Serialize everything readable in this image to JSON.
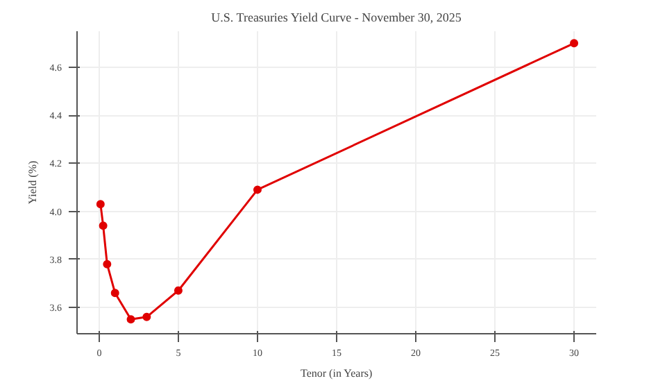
{
  "chart_data": {
    "type": "line",
    "title": "U.S. Treasuries Yield Curve - November 30, 2025",
    "xlabel": "Tenor (in Years)",
    "ylabel": "Yield (%)",
    "x": [
      0.083,
      0.25,
      0.5,
      1,
      2,
      3,
      5,
      10,
      30
    ],
    "series": [
      {
        "color": "#e00000",
        "values": [
          4.03,
          3.94,
          3.78,
          3.66,
          3.55,
          3.56,
          3.67,
          4.09,
          4.7
        ]
      }
    ],
    "xlim": [
      -1.4,
      31.4
    ],
    "ylim": [
      3.49,
      4.75
    ],
    "xticks": [
      0,
      5,
      10,
      15,
      20,
      25,
      30
    ],
    "yticks": [
      {
        "value": 3.6,
        "label": "3.6"
      },
      {
        "value": 3.8,
        "label": "3.8"
      },
      {
        "value": 4.0,
        "label": "4.0"
      },
      {
        "value": 4.2,
        "label": "4.2"
      },
      {
        "value": 4.4,
        "label": "4.4"
      },
      {
        "value": 4.6,
        "label": "4.6"
      }
    ],
    "grid": true,
    "marker": "circle",
    "line_style": "solid"
  }
}
